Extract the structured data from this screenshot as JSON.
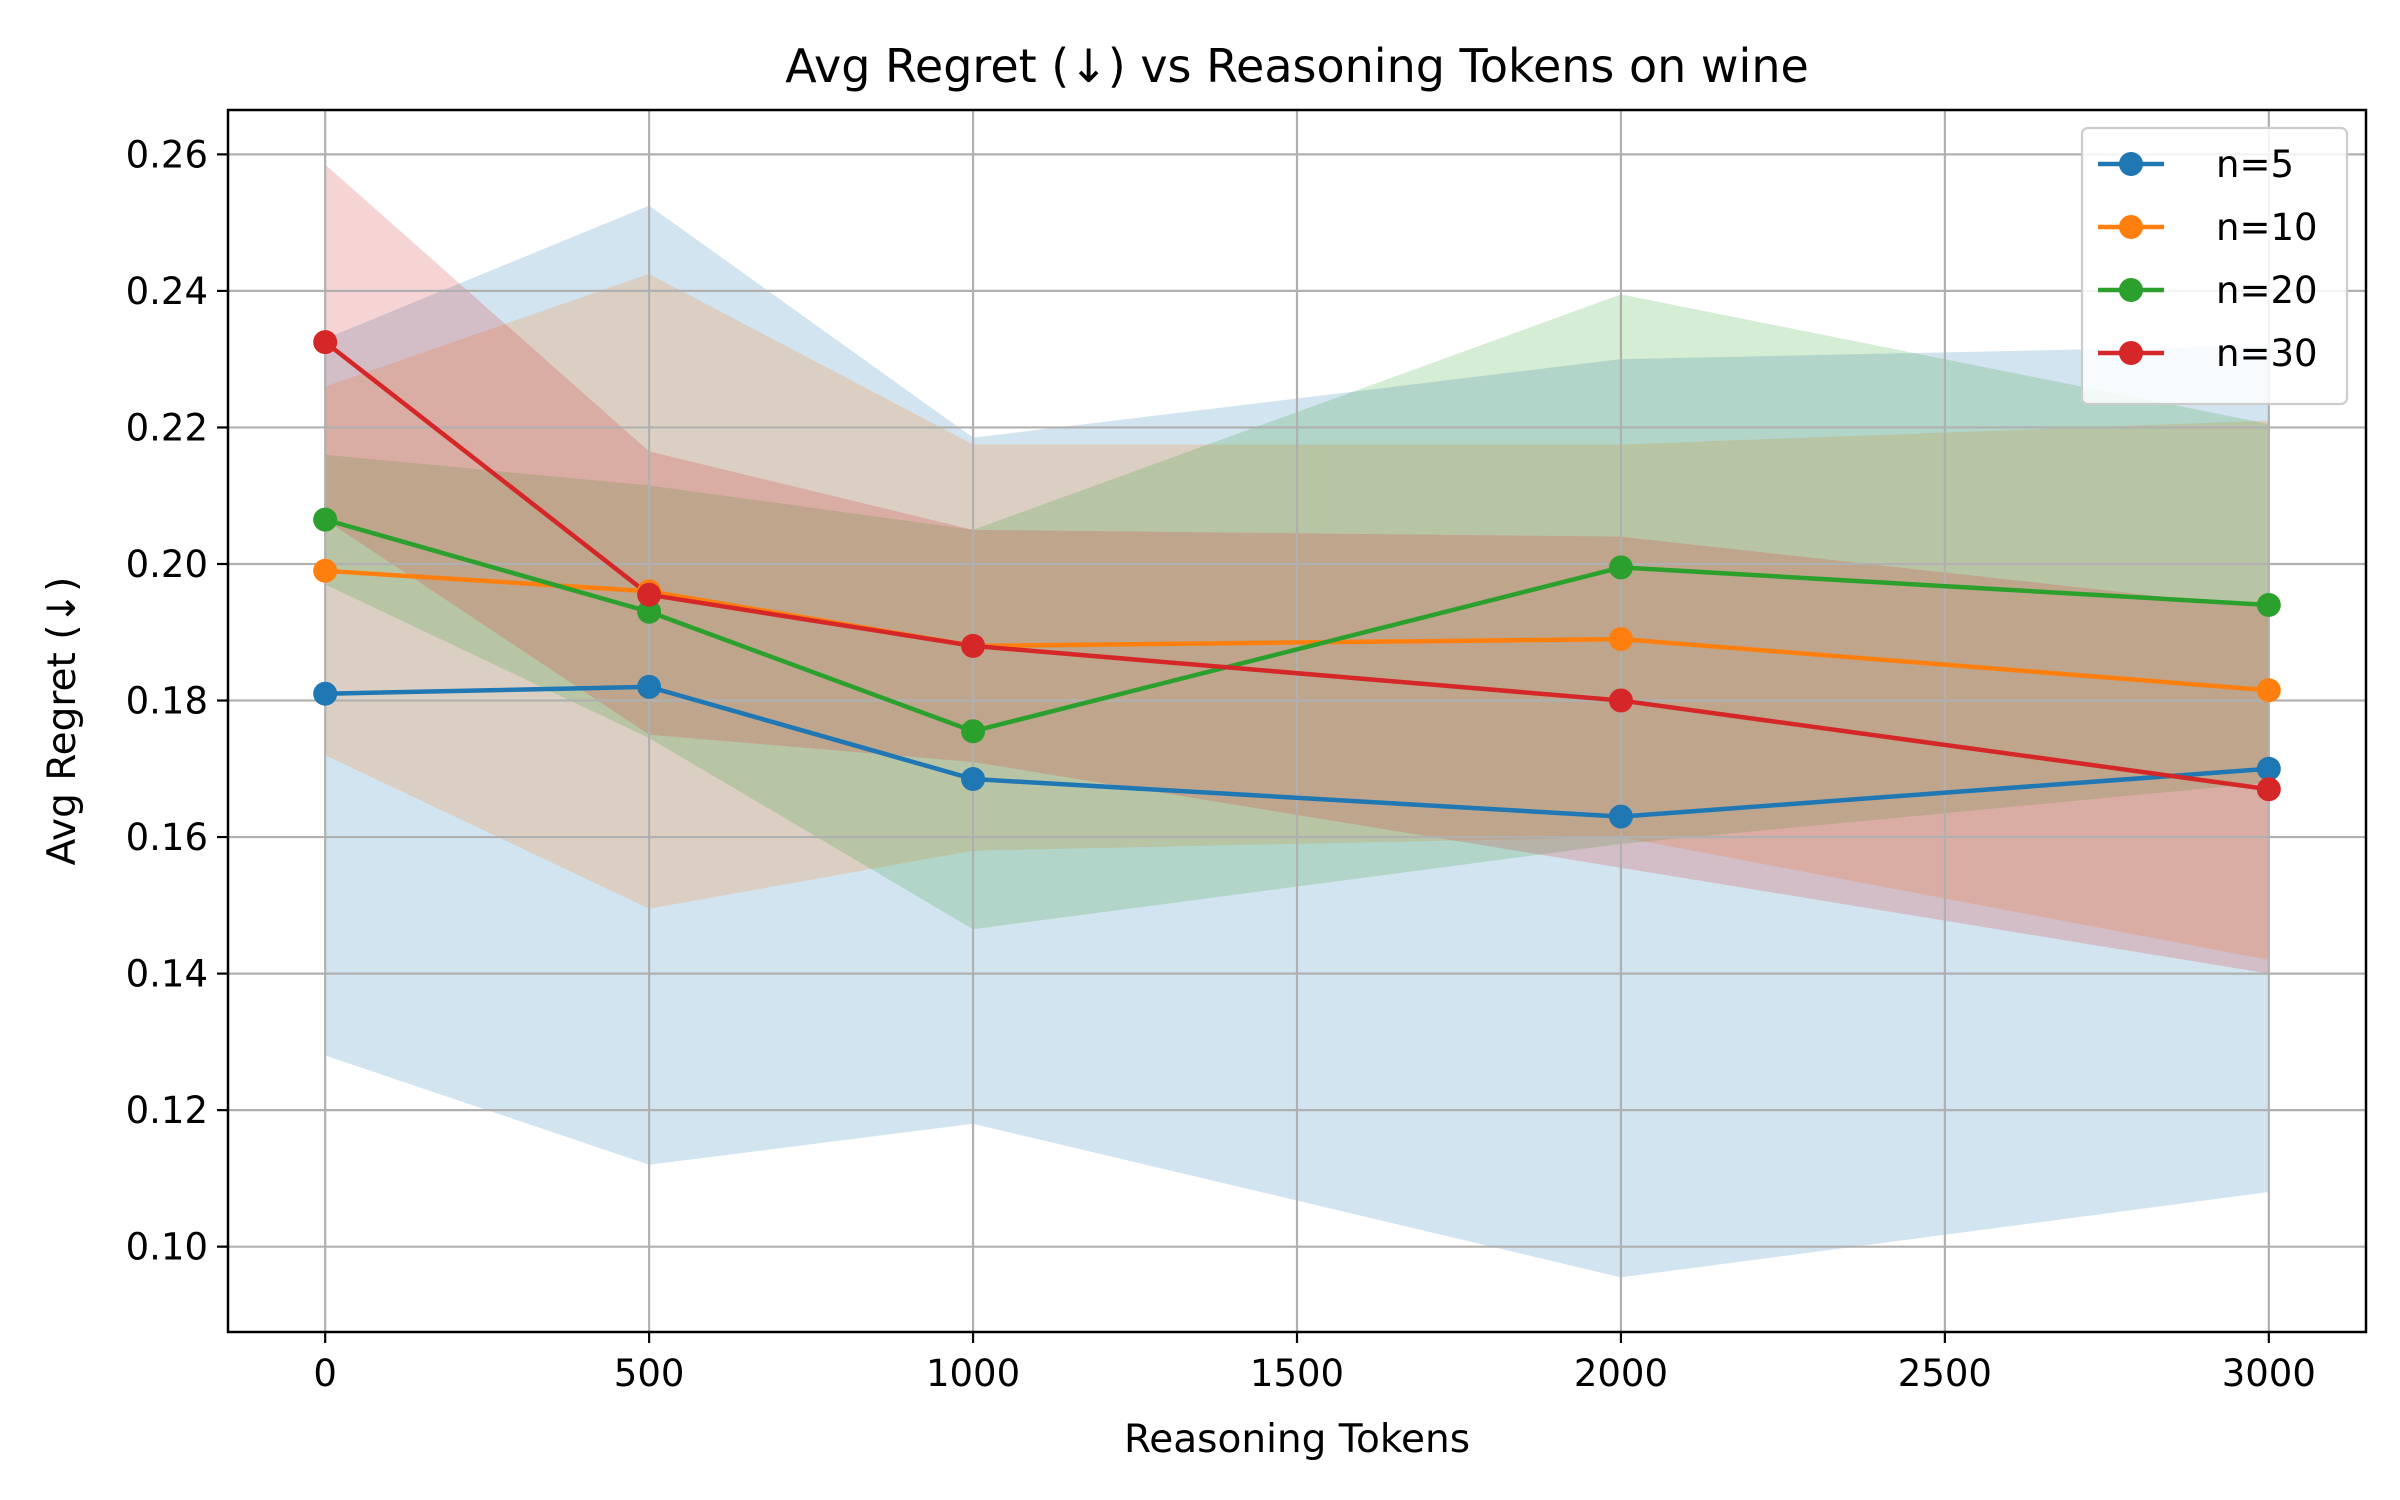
{
  "chart_data": {
    "type": "line",
    "title": "Avg Regret (↓) vs Reasoning Tokens on wine",
    "xlabel": "Reasoning Tokens",
    "ylabel": "Avg Regret (↓)",
    "xlim": [
      -150,
      3150
    ],
    "ylim": [
      0.0875,
      0.2665
    ],
    "xticks": [
      0,
      500,
      1000,
      1500,
      2000,
      2500,
      3000
    ],
    "yticks": [
      0.1,
      0.12,
      0.14,
      0.16,
      0.18,
      0.2,
      0.22,
      0.24,
      0.26
    ],
    "grid": true,
    "legend_position": "top-right",
    "x": [
      0,
      500,
      1000,
      2000,
      3000
    ],
    "series": [
      {
        "name": "n=5",
        "color": "#1f77b4",
        "values": [
          0.181,
          0.182,
          0.1685,
          0.163,
          0.17
        ],
        "band_lower": [
          0.128,
          0.112,
          0.118,
          0.0955,
          0.108
        ],
        "band_upper": [
          0.233,
          0.2525,
          0.2185,
          0.23,
          0.232
        ]
      },
      {
        "name": "n=10",
        "color": "#ff7f0e",
        "values": [
          0.199,
          0.196,
          0.188,
          0.189,
          0.1815
        ],
        "band_lower": [
          0.172,
          0.1495,
          0.158,
          0.16,
          0.142
        ],
        "band_upper": [
          0.226,
          0.2425,
          0.2175,
          0.2175,
          0.221
        ]
      },
      {
        "name": "n=20",
        "color": "#2ca02c",
        "values": [
          0.2065,
          0.193,
          0.1755,
          0.1995,
          0.194
        ],
        "band_lower": [
          0.197,
          0.1745,
          0.1465,
          0.159,
          0.168
        ],
        "band_upper": [
          0.216,
          0.2115,
          0.205,
          0.2395,
          0.2205
        ]
      },
      {
        "name": "n=30",
        "color": "#d62728",
        "values": [
          0.2325,
          0.1955,
          0.188,
          0.18,
          0.167
        ],
        "band_lower": [
          0.2065,
          0.175,
          0.171,
          0.1555,
          0.14
        ],
        "band_upper": [
          0.2585,
          0.2165,
          0.205,
          0.204,
          0.1935
        ]
      }
    ]
  }
}
